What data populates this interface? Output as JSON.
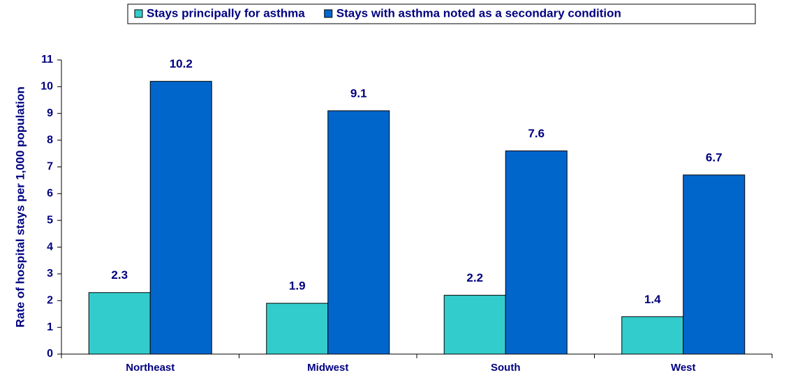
{
  "chart_data": {
    "type": "bar",
    "y_label": "Rate of hospital stays per 1,000 population",
    "categories": [
      "Northeast",
      "Midwest",
      "South",
      "West"
    ],
    "series": [
      {
        "name": "Stays principally for asthma",
        "color": "#33cccc",
        "values": [
          2.3,
          1.9,
          2.2,
          1.4
        ]
      },
      {
        "name": "Stays with asthma noted as a secondary condition",
        "color": "#0066cc",
        "values": [
          10.2,
          9.1,
          7.6,
          6.7
        ]
      }
    ],
    "ylim": [
      0,
      11
    ],
    "yticks": [
      0,
      1,
      2,
      3,
      4,
      5,
      6,
      7,
      8,
      9,
      10,
      11
    ],
    "legend": "top"
  }
}
